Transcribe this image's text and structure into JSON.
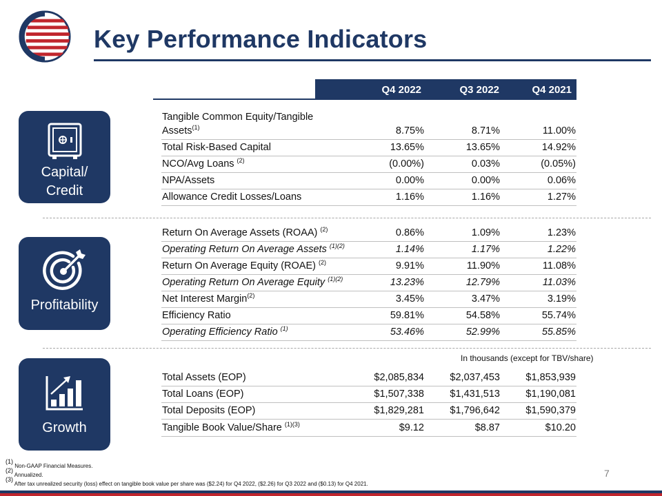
{
  "title": "Key Performance Indicators",
  "columns": [
    "Q4 2022",
    "Q3 2022",
    "Q4 2021"
  ],
  "sections": {
    "capital": {
      "label_line1": "Capital/",
      "label_line2": "Credit",
      "icon": "safe-icon",
      "rows": [
        {
          "label1": "Tangible Common Equity/Tangible",
          "label2": "Assets",
          "sup": "(1)",
          "values": [
            "8.75%",
            "8.71%",
            "11.00%"
          ]
        },
        {
          "label": "Total Risk-Based Capital",
          "sup": "",
          "values": [
            "13.65%",
            "13.65%",
            "14.92%"
          ]
        },
        {
          "label": "NCO/Avg Loans ",
          "sup": "(2)",
          "values": [
            "(0.00%)",
            "0.03%",
            "(0.05%)"
          ]
        },
        {
          "label": "NPA/Assets",
          "sup": "",
          "values": [
            "0.00%",
            "0.00%",
            "0.06%"
          ]
        },
        {
          "label": "Allowance Credit Losses/Loans",
          "sup": "",
          "values": [
            "1.16%",
            "1.16%",
            "1.27%"
          ]
        }
      ]
    },
    "profitability": {
      "label": "Profitability",
      "icon": "target-icon",
      "rows": [
        {
          "label": "Return On Average Assets (ROAA) ",
          "sup": "(2)",
          "values": [
            "0.86%",
            "1.09%",
            "1.23%"
          ]
        },
        {
          "label": "Operating Return On Average Assets ",
          "sup": "(1)(2)",
          "values": [
            "1.14%",
            "1.17%",
            "1.22%"
          ]
        },
        {
          "label": "Return On Average Equity (ROAE) ",
          "sup": "(2)",
          "values": [
            "9.91%",
            "11.90%",
            "11.08%"
          ]
        },
        {
          "label": "Operating Return On Average Equity ",
          "sup": "(1)(2)",
          "values": [
            "13.23%",
            "12.79%",
            "11.03%"
          ]
        },
        {
          "label": "Net Interest Margin",
          "sup": "(2)",
          "values": [
            "3.45%",
            "3.47%",
            "3.19%"
          ]
        },
        {
          "label": "Efficiency Ratio",
          "sup": "",
          "values": [
            "59.81%",
            "54.58%",
            "55.74%"
          ]
        },
        {
          "label": "Operating Efficiency Ratio ",
          "sup": "(1)",
          "values": [
            "53.46%",
            "52.99%",
            "55.85%"
          ]
        }
      ]
    },
    "growth": {
      "label": "Growth",
      "icon": "bar-chart-growth-icon",
      "units_note": "In thousands (except for TBV/share)",
      "rows": [
        {
          "label": "Total Assets (EOP)",
          "sup": "",
          "values": [
            "$2,085,834",
            "$2,037,453",
            "$1,853,939"
          ]
        },
        {
          "label": "Total Loans (EOP)",
          "sup": "",
          "values": [
            "$1,507,338",
            "$1,431,513",
            "$1,190,081"
          ]
        },
        {
          "label": "Total Deposits (EOP)",
          "sup": "",
          "values": [
            "$1,829,281",
            "$1,796,642",
            "$1,590,379"
          ]
        },
        {
          "label": "Tangible Book Value/Share ",
          "sup": "(1)(3)",
          "values": [
            "$9.12",
            "$8.87",
            "$10.20"
          ]
        }
      ]
    }
  },
  "footnotes": [
    {
      "mark": "(1)",
      "text": " Non-GAAP Financial Measures."
    },
    {
      "mark": "(2)",
      "text": " Annualized."
    },
    {
      "mark": "(3)",
      "text": " After tax unrealized security (loss) effect on tangible book value per share was ($2.24) for Q4 2022, ($2.26) for Q3 2022 and ($0.13) for Q4 2021."
    }
  ],
  "page_number": "7",
  "colors": {
    "navy": "#1f3864",
    "red": "#c0262d"
  }
}
